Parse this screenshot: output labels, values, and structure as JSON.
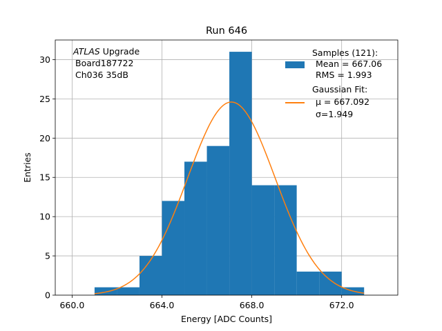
{
  "chart_data": {
    "type": "bar",
    "title": "Run 646",
    "xlabel": "Energy [ADC Counts]",
    "ylabel": "Entries",
    "xlim": [
      659.25,
      674.5
    ],
    "ylim": [
      0,
      32.5
    ],
    "grid": true,
    "xticks": [
      660,
      664,
      668,
      672
    ],
    "xtick_labels": [
      "660.0",
      "664.0",
      "668.0",
      "672.0"
    ],
    "yticks": [
      0,
      5,
      10,
      15,
      20,
      25,
      30
    ],
    "ytick_labels": [
      "0",
      "5",
      "10",
      "15",
      "20",
      "25",
      "30"
    ],
    "annotation": {
      "italic": "ATLAS",
      "rest": " Upgrade",
      "line2": "Board187722",
      "line3": "Ch036 35dB"
    },
    "histogram": {
      "bin_edges": [
        661,
        662,
        663,
        664,
        665,
        666,
        667,
        668,
        669,
        670,
        671,
        672,
        673
      ],
      "counts": [
        1,
        1,
        5,
        12,
        17,
        19,
        31,
        14,
        14,
        3,
        3,
        1
      ],
      "color": "#1f77b4"
    },
    "fit": {
      "mu": 667.092,
      "sigma": 1.949,
      "amplitude": 24.6,
      "x_range": [
        661,
        673
      ],
      "color": "#ff7f0e"
    },
    "legend": {
      "placement": "top-right",
      "samples_title": "Samples (121):",
      "samples_mean": "Mean = 667.06",
      "samples_rms": "RMS = 1.993",
      "fit_title": "Gaussian Fit:",
      "fit_mu": "μ = 667.092",
      "fit_sigma": "σ=1.949"
    }
  }
}
